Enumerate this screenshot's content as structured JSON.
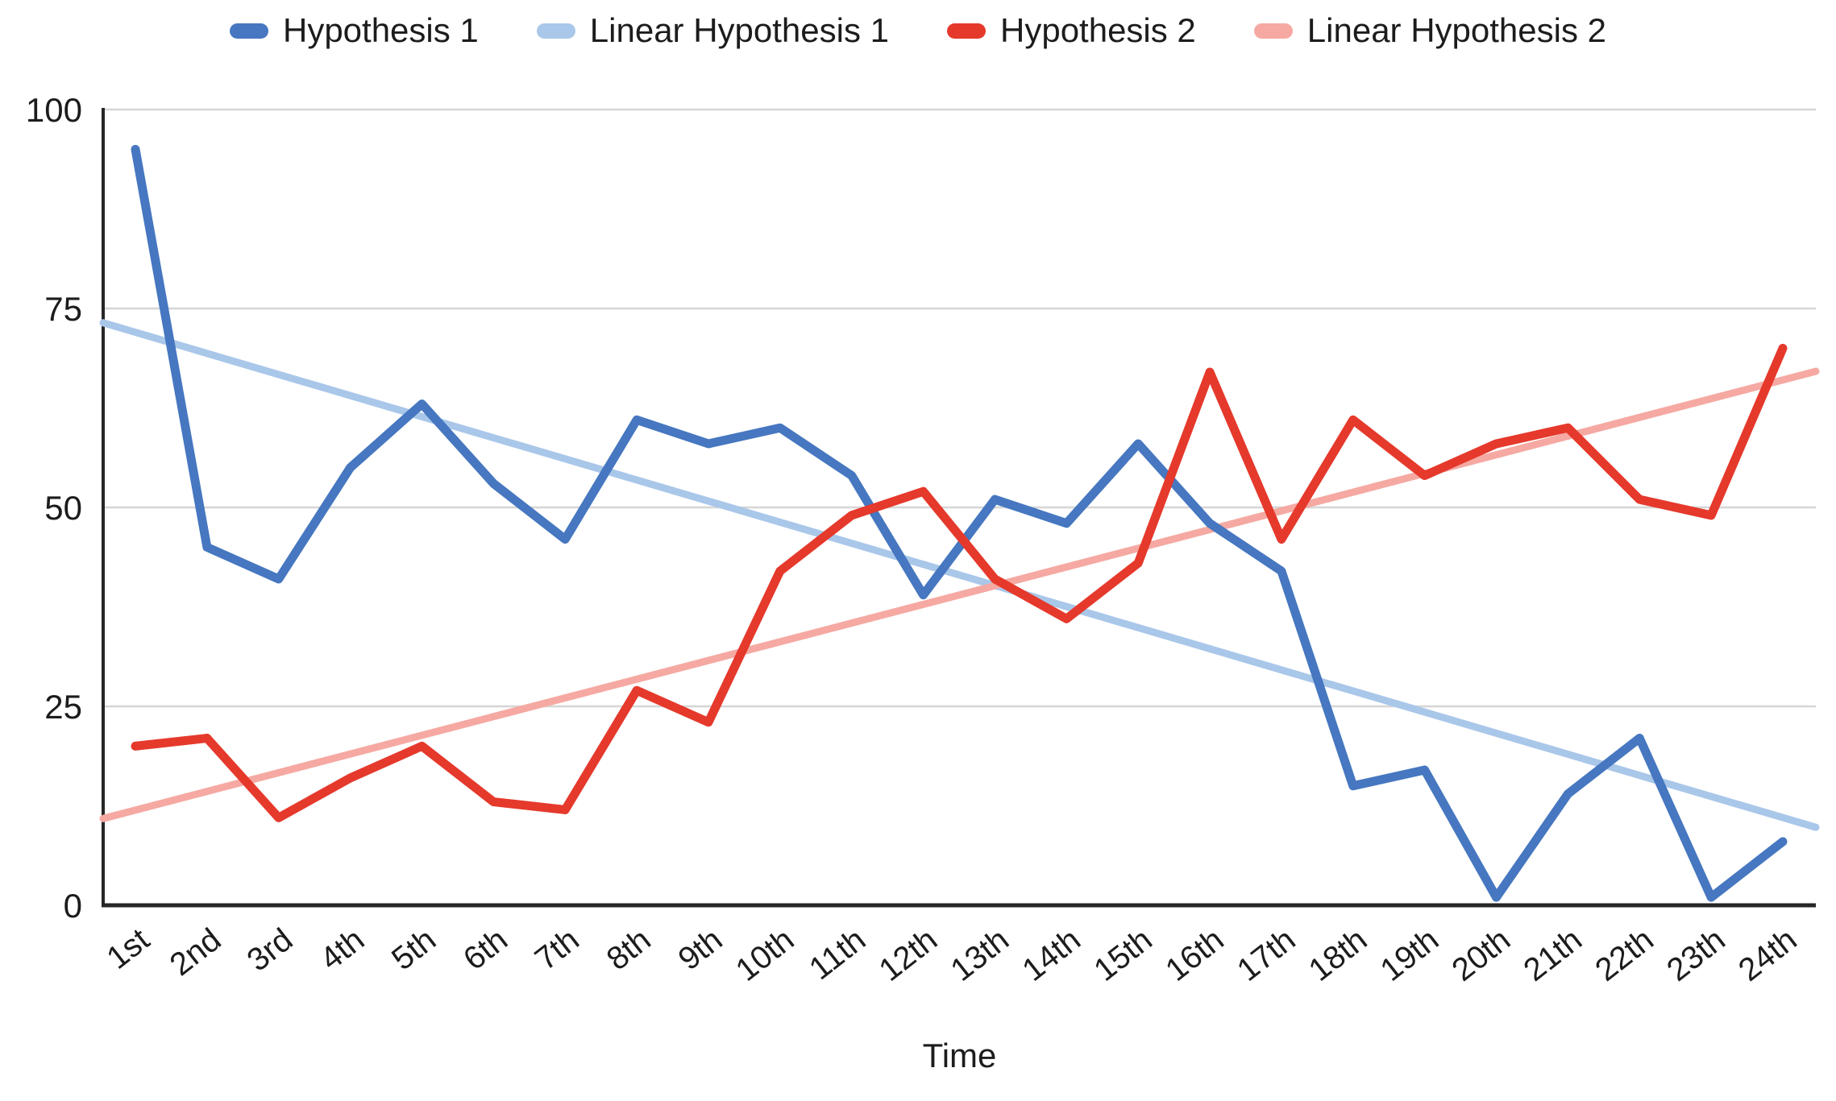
{
  "chart_data": {
    "type": "line",
    "title": "",
    "xlabel": "Time",
    "ylabel": "",
    "categories": [
      "1st",
      "2nd",
      "3rd",
      "4th",
      "5th",
      "6th",
      "7th",
      "8th",
      "9th",
      "10th",
      "11th",
      "12th",
      "13th",
      "14th",
      "15th",
      "16th",
      "17th",
      "18th",
      "19th",
      "20th",
      "21th",
      "22th",
      "23th",
      "24th"
    ],
    "y_ticks": [
      0,
      25,
      50,
      75,
      100
    ],
    "ylim": [
      0,
      100
    ],
    "grid": true,
    "legend_position": "top",
    "grid_color": "#D6D6D6",
    "axis_color": "#262626",
    "text_color": "#1c1c1c",
    "series": [
      {
        "name": "Hypothesis 1",
        "color": "#4677C0",
        "kind": "data",
        "line_width": 11,
        "values": [
          95,
          45,
          41,
          55,
          63,
          53,
          46,
          61,
          58,
          60,
          54,
          39,
          51,
          48,
          58,
          48,
          42,
          15,
          17,
          1,
          14,
          21,
          1,
          8
        ]
      },
      {
        "name": "Linear Hypothesis 1",
        "color": "#A9C7E9",
        "kind": "trend",
        "line_width": 9,
        "values": [
          72,
          69.3,
          66.7,
          64,
          61.4,
          58.7,
          56.1,
          53.4,
          50.8,
          48.1,
          45.5,
          42.8,
          40.2,
          37.5,
          34.9,
          32.2,
          29.6,
          26.9,
          24.3,
          21.6,
          19,
          16.3,
          13.7,
          11
        ],
        "edge_values": [
          73.2,
          9.8
        ]
      },
      {
        "name": "Hypothesis 2",
        "color": "#E5392C",
        "kind": "data",
        "line_width": 11,
        "values": [
          20,
          21,
          11,
          16,
          20,
          13,
          12,
          27,
          23,
          42,
          49,
          52,
          41,
          36,
          43,
          67,
          46,
          61,
          54,
          58,
          60,
          51,
          49,
          70
        ]
      },
      {
        "name": "Linear Hypothesis 2",
        "color": "#F5A9A2",
        "kind": "trend",
        "line_width": 9,
        "values": [
          12,
          14.3,
          16.7,
          19,
          21.4,
          23.7,
          26.1,
          28.4,
          30.8,
          33.1,
          35.5,
          37.8,
          40.2,
          42.5,
          44.9,
          47.2,
          49.6,
          51.9,
          54.3,
          56.6,
          59,
          61.3,
          63.7,
          66
        ],
        "edge_values": [
          10.9,
          67.1
        ]
      }
    ]
  }
}
